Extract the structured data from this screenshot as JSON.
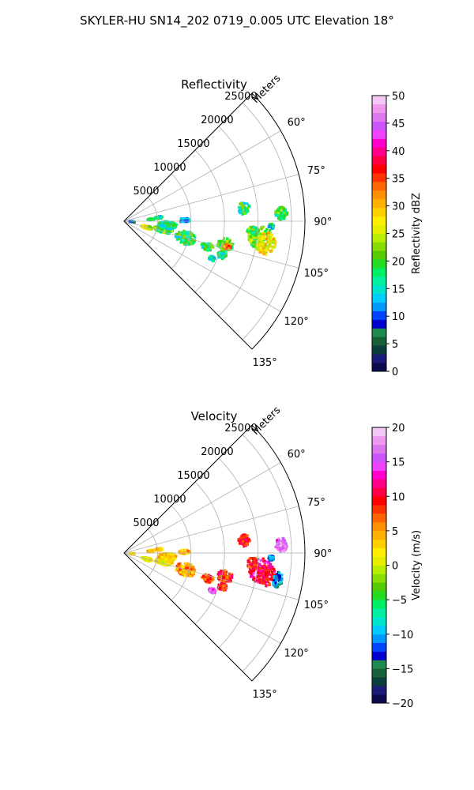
{
  "figure": {
    "suptitle": "SKYLER-HU  SN14_202  0719_0.005 UTC Elevation 18°"
  },
  "chart_data": [
    {
      "type": "heatmap",
      "projection": "polar-sector",
      "title": "Reflectivity",
      "radial_label": "Meters",
      "r_ticks": [
        "5000",
        "10000",
        "15000",
        "20000",
        "25000"
      ],
      "theta_ticks": [
        "60°",
        "75°",
        "90°",
        "105°",
        "120°",
        "135°"
      ],
      "theta_range_deg": [
        45,
        135
      ],
      "r_range": [
        0,
        27000
      ],
      "grid": true,
      "colorbar": {
        "label": "Reflectivity dBZ",
        "min": 0,
        "max": 50,
        "ticks": [
          "0",
          "5",
          "10",
          "15",
          "20",
          "25",
          "30",
          "35",
          "40",
          "45",
          "50"
        ],
        "colors": [
          "#0a0a4a",
          "#1a1a78",
          "#0b3d3d",
          "#18603a",
          "#1f8a4e",
          "#0000cc",
          "#0044ff",
          "#0099ff",
          "#00ccff",
          "#00e5cc",
          "#00f0a0",
          "#00ee66",
          "#22dd22",
          "#55cc00",
          "#88dd00",
          "#b8ee00",
          "#e6ee00",
          "#ffee00",
          "#ffd000",
          "#ffb000",
          "#ff9000",
          "#ff6600",
          "#ff3300",
          "#ff0000",
          "#ff0044",
          "#ff0088",
          "#ff00cc",
          "#ee44ff",
          "#cc55ff",
          "#dd77ee",
          "#ee99ee",
          "#f4c8f4"
        ]
      },
      "echoes": [
        {
          "theta": 97,
          "r": 20500,
          "dt": 5.5,
          "dr": 1700,
          "dbz": 22
        },
        {
          "theta": 99,
          "r": 21500,
          "dt": 4.5,
          "dr": 1400,
          "dbz": 27
        },
        {
          "theta": 95,
          "r": 19300,
          "dt": 3,
          "dr": 900,
          "dbz": 20
        },
        {
          "theta": 87,
          "r": 23500,
          "dt": 2.5,
          "dr": 900,
          "dbz": 19
        },
        {
          "theta": 84,
          "r": 18000,
          "dt": 3,
          "dr": 900,
          "dbz": 18
        },
        {
          "theta": 103,
          "r": 15500,
          "dt": 3.5,
          "dr": 1200,
          "dbz": 20
        },
        {
          "theta": 104,
          "r": 15800,
          "dt": 1.5,
          "dr": 600,
          "dbz": 34
        },
        {
          "theta": 107,
          "r": 13000,
          "dt": 2.5,
          "dr": 900,
          "dbz": 19
        },
        {
          "theta": 109,
          "r": 15500,
          "dt": 2,
          "dr": 700,
          "dbz": 17
        },
        {
          "theta": 113,
          "r": 14300,
          "dt": 1.5,
          "dr": 500,
          "dbz": 16
        },
        {
          "theta": 105,
          "r": 9500,
          "dt": 6,
          "dr": 1500,
          "dbz": 18
        },
        {
          "theta": 102,
          "r": 6000,
          "dt": 5,
          "dr": 1400,
          "dbz": 19
        },
        {
          "theta": 105,
          "r": 3500,
          "dt": 4,
          "dr": 800,
          "dbz": 26
        },
        {
          "theta": 95,
          "r": 6500,
          "dt": 5,
          "dr": 1400,
          "dbz": 17
        },
        {
          "theta": 89,
          "r": 9000,
          "dt": 2,
          "dr": 800,
          "dbz": 12
        },
        {
          "theta": 84,
          "r": 5200,
          "dt": 2,
          "dr": 600,
          "dbz": 16
        },
        {
          "theta": 86,
          "r": 4000,
          "dt": 2,
          "dr": 500,
          "dbz": 20
        },
        {
          "theta": 95,
          "r": 1200,
          "dt": 4,
          "dr": 400,
          "dbz": 10
        },
        {
          "theta": 92,
          "r": 22000,
          "dt": 1,
          "dr": 400,
          "dbz": 15
        }
      ]
    },
    {
      "type": "heatmap",
      "projection": "polar-sector",
      "title": "Velocity",
      "radial_label": "Meters",
      "r_ticks": [
        "5000",
        "10000",
        "15000",
        "20000",
        "25000"
      ],
      "theta_ticks": [
        "60°",
        "75°",
        "90°",
        "105°",
        "120°",
        "135°"
      ],
      "theta_range_deg": [
        45,
        135
      ],
      "r_range": [
        0,
        27000
      ],
      "grid": true,
      "colorbar": {
        "label": "Velocity (m/s)",
        "min": -20,
        "max": 20,
        "ticks": [
          "−20",
          "−15",
          "−10",
          "−5",
          "0",
          "5",
          "10",
          "15",
          "20"
        ],
        "colors": [
          "#0a0a4a",
          "#1a1a78",
          "#0b3d3d",
          "#18603a",
          "#1f8a4e",
          "#0000cc",
          "#0044ff",
          "#0099ff",
          "#00ccff",
          "#00e5cc",
          "#00f0a0",
          "#00ee66",
          "#22dd22",
          "#55cc00",
          "#88dd00",
          "#b8ee00",
          "#e6ee00",
          "#ffee00",
          "#ffd000",
          "#ffb000",
          "#ff9000",
          "#ff6600",
          "#ff3300",
          "#ff0000",
          "#ff0044",
          "#ff0088",
          "#ff00cc",
          "#ee44ff",
          "#cc55ff",
          "#dd77ee",
          "#ee99ee",
          "#f4c8f4"
        ]
      },
      "echoes": [
        {
          "theta": 97,
          "r": 20500,
          "dt": 5.5,
          "dr": 1700,
          "vel": 12
        },
        {
          "theta": 99,
          "r": 21500,
          "dt": 4.5,
          "dr": 1400,
          "vel": 10
        },
        {
          "theta": 95,
          "r": 19300,
          "dt": 3,
          "dr": 900,
          "vel": 9
        },
        {
          "theta": 87,
          "r": 23500,
          "dt": 2.5,
          "dr": 900,
          "vel": 16
        },
        {
          "theta": 84,
          "r": 18000,
          "dt": 3,
          "dr": 900,
          "vel": 9
        },
        {
          "theta": 103,
          "r": 15500,
          "dt": 3.5,
          "dr": 1200,
          "vel": 9
        },
        {
          "theta": 104,
          "r": 15800,
          "dt": 1.5,
          "dr": 600,
          "vel": 8
        },
        {
          "theta": 107,
          "r": 13000,
          "dt": 2.5,
          "dr": 900,
          "vel": 8
        },
        {
          "theta": 109,
          "r": 15500,
          "dt": 2,
          "dr": 700,
          "vel": 9
        },
        {
          "theta": 113,
          "r": 14300,
          "dt": 1.5,
          "dr": 500,
          "vel": 16
        },
        {
          "theta": 105,
          "r": 9500,
          "dt": 6,
          "dr": 1500,
          "vel": 5
        },
        {
          "theta": 102,
          "r": 6000,
          "dt": 5,
          "dr": 1400,
          "vel": 2
        },
        {
          "theta": 105,
          "r": 3500,
          "dt": 4,
          "dr": 800,
          "vel": 1
        },
        {
          "theta": 95,
          "r": 6500,
          "dt": 5,
          "dr": 1400,
          "vel": 3
        },
        {
          "theta": 89,
          "r": 9000,
          "dt": 2,
          "dr": 800,
          "vel": 4
        },
        {
          "theta": 84,
          "r": 5200,
          "dt": 2,
          "dr": 600,
          "vel": 3
        },
        {
          "theta": 86,
          "r": 4000,
          "dt": 2,
          "dr": 500,
          "vel": 3
        },
        {
          "theta": 95,
          "r": 1200,
          "dt": 4,
          "dr": 400,
          "vel": 2
        },
        {
          "theta": 100,
          "r": 23300,
          "dt": 3,
          "dr": 700,
          "vel": -11
        },
        {
          "theta": 92,
          "r": 22000,
          "dt": 1,
          "dr": 400,
          "vel": -12
        }
      ]
    }
  ]
}
